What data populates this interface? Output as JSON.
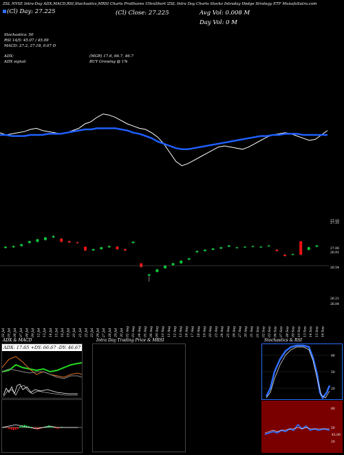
{
  "header": {
    "line1": "ZSL NYSE Intra-Day ADX,MACD,RSI,Stochastics,MRSI Charts ProShares UltraShort Silver (NYSE) Charts",
    "line2a": "(Cl) Close: 27.225",
    "line2b": "(Cl) Day: 27.225",
    "title_col": "ZSL Intra Day Charts Stocks Intraday Hedge Strategy ETF MunafaSutra.com",
    "avg_vol": "Avg Vol: 0.008 M",
    "day_vol": "Day Vol: 0 M"
  },
  "indicators": {
    "stoch_line": "Stochastics: 50",
    "rsi_line": "RSI 14/5: 45.07 / 45.09",
    "macd_line": "MACD: 27.2, 27.18, 0.07 D",
    "adx_line": "ADX:",
    "adx_vals": "(MGR) 17.6, 66.7, 46.7",
    "adx_signal": "ADX signal:",
    "signal_val": "BUY Growing @ 1%"
  },
  "price_labels": {
    "p1": "27.33",
    "p2": "27.06",
    "p3": "26.91",
    "p4": "26.54",
    "p5": "26.21",
    "p6": "26.04",
    "p7": "27.10"
  },
  "panels": {
    "adx_title": "ADX & MACD",
    "adx_badge": "ADX: 17.65 +DY: 66.67 -DY: 46.67",
    "intra_title": "Intra Day Trading Price & MRSI",
    "stoch_title": "Stochastics & RSI",
    "stoch_levels": [
      "80",
      "50",
      "20"
    ],
    "rsi_levels": [
      "80",
      "50",
      "20"
    ],
    "rsi_badge": "45.09"
  },
  "colors": {
    "ma": "#1f5fff",
    "price": "#ffffff",
    "up": "#00cc33",
    "down": "#ee1111",
    "rsi_bg": "#7a0000",
    "adx_green": "#22dd22",
    "adx_orange": "#e07020"
  },
  "chart_data": {
    "type": "line",
    "title": "",
    "dates": [
      "02 Jul",
      "05 Jul",
      "06 Jul",
      "07 Jul",
      "08 Jul",
      "09 Jul",
      "12 Jul",
      "13 Jul",
      "14 Jul",
      "15 Jul",
      "16 Jul",
      "19 Jul",
      "20 Jul",
      "21 Jul",
      "22 Jul",
      "23 Jul",
      "26 Jul",
      "27 Jul",
      "28 Jul",
      "29 Jul",
      "30 Jul",
      "02 Aug",
      "03 Aug",
      "04 Aug",
      "05 Aug",
      "06 Aug",
      "09 Aug",
      "10 Aug",
      "11 Aug",
      "12 Aug",
      "13 Aug",
      "16 Aug",
      "17 Aug",
      "18 Aug",
      "19 Aug",
      "20 Aug",
      "23 Aug",
      "24 Aug",
      "25 Aug",
      "26 Aug",
      "27 Aug",
      "30 Aug",
      "31 Aug",
      "01 Sep",
      "02 Sep",
      "03 Sep",
      "06 Sep",
      "07 Sep",
      "08 Sep",
      "09 Sep",
      "10 Sep",
      "13 Sep",
      "14 Sep",
      "15 Sep",
      "16 Sep"
    ],
    "series": [
      {
        "values": [
          62,
          60,
          61,
          62,
          63,
          65,
          66,
          64,
          63,
          62,
          61,
          62,
          64,
          66,
          70,
          72,
          76,
          79,
          78,
          76,
          73,
          70,
          68,
          66,
          65,
          62,
          58,
          52,
          44,
          36,
          32,
          34,
          37,
          40,
          43,
          46,
          49,
          50,
          49,
          48,
          47,
          49,
          52,
          55,
          58,
          60,
          61,
          62,
          61,
          59,
          57,
          55,
          56,
          60,
          64
        ]
      },
      {
        "values": [
          60,
          60,
          59,
          59,
          59,
          60,
          60,
          60,
          61,
          61,
          61,
          62,
          63,
          64,
          65,
          65,
          66,
          66,
          66,
          66,
          65,
          64,
          62,
          61,
          59,
          57,
          54,
          52,
          50,
          48,
          47,
          47,
          48,
          49,
          50,
          51,
          52,
          53,
          54,
          55,
          56,
          57,
          58,
          59,
          59,
          60,
          60,
          61,
          61,
          61,
          60,
          60,
          60,
          60,
          60
        ]
      }
    ],
    "candles": [
      {
        "o": 26.95,
        "c": 26.97,
        "h": 26.98,
        "l": 26.94
      },
      {
        "o": 26.96,
        "c": 26.98,
        "h": 26.99,
        "l": 26.95
      },
      {
        "o": 26.98,
        "c": 27.01,
        "h": 27.02,
        "l": 26.97
      },
      {
        "o": 27.03,
        "c": 27.06,
        "h": 27.07,
        "l": 27.02
      },
      {
        "o": 27.05,
        "c": 27.09,
        "h": 27.1,
        "l": 27.04
      },
      {
        "o": 27.08,
        "c": 27.12,
        "h": 27.13,
        "l": 27.07
      },
      {
        "o": 27.12,
        "c": 27.14,
        "h": 27.16,
        "l": 27.11
      },
      {
        "o": 27.1,
        "c": 27.05,
        "h": 27.11,
        "l": 27.04
      },
      {
        "o": 27.06,
        "c": 27.04,
        "h": 27.07,
        "l": 27.03
      },
      {
        "o": 27.04,
        "c": 27.03,
        "h": 27.05,
        "l": 27.02
      },
      {
        "o": 26.97,
        "c": 26.91,
        "h": 26.97,
        "l": 26.9
      },
      {
        "o": 26.91,
        "c": 26.93,
        "h": 26.94,
        "l": 26.9
      },
      {
        "o": 26.93,
        "c": 26.96,
        "h": 26.97,
        "l": 26.92
      },
      {
        "o": 26.96,
        "c": 26.98,
        "h": 26.99,
        "l": 26.95
      },
      {
        "o": 26.97,
        "c": 26.93,
        "h": 26.98,
        "l": 26.92
      },
      {
        "o": 26.93,
        "c": 26.91,
        "h": 26.94,
        "l": 26.9
      },
      {
        "o": 27.03,
        "c": 27.05,
        "h": 27.06,
        "l": 27.02
      },
      {
        "o": 26.7,
        "c": 26.64,
        "h": 26.7,
        "l": 26.63
      },
      {
        "o": 26.5,
        "c": 26.52,
        "h": 26.53,
        "l": 26.4
      },
      {
        "o": 26.56,
        "c": 26.6,
        "h": 26.61,
        "l": 26.55
      },
      {
        "o": 26.62,
        "c": 26.66,
        "h": 26.67,
        "l": 26.61
      },
      {
        "o": 26.67,
        "c": 26.7,
        "h": 26.71,
        "l": 26.66
      },
      {
        "o": 26.7,
        "c": 26.74,
        "h": 26.75,
        "l": 26.69
      },
      {
        "o": 26.76,
        "c": 26.78,
        "h": 26.79,
        "l": 26.75
      },
      {
        "o": 26.88,
        "c": 26.9,
        "h": 26.91,
        "l": 26.87
      },
      {
        "o": 26.9,
        "c": 26.92,
        "h": 26.93,
        "l": 26.89
      },
      {
        "o": 26.92,
        "c": 26.94,
        "h": 26.95,
        "l": 26.91
      },
      {
        "o": 26.94,
        "c": 26.96,
        "h": 26.97,
        "l": 26.93
      },
      {
        "o": 26.97,
        "c": 26.99,
        "h": 27.0,
        "l": 26.96
      },
      {
        "o": 26.95,
        "c": 26.96,
        "h": 26.97,
        "l": 26.94
      },
      {
        "o": 26.96,
        "c": 26.97,
        "h": 26.98,
        "l": 26.95
      },
      {
        "o": 26.97,
        "c": 26.98,
        "h": 26.99,
        "l": 26.96
      },
      {
        "o": 26.96,
        "c": 26.97,
        "h": 26.98,
        "l": 26.95
      },
      {
        "o": 26.98,
        "c": 26.99,
        "h": 27.0,
        "l": 26.97
      },
      {
        "o": 26.92,
        "c": 26.9,
        "h": 26.93,
        "l": 26.89
      },
      {
        "o": 26.84,
        "c": 26.82,
        "h": 26.85,
        "l": 26.81
      },
      {
        "o": 26.84,
        "c": 26.85,
        "h": 26.86,
        "l": 26.83
      },
      {
        "o": 27.06,
        "c": 26.84,
        "h": 27.06,
        "l": 26.83
      },
      {
        "o": 26.92,
        "c": 26.96,
        "h": 26.97,
        "l": 26.91
      },
      {
        "o": 26.97,
        "c": 26.99,
        "h": 27.0,
        "l": 26.96
      }
    ]
  }
}
